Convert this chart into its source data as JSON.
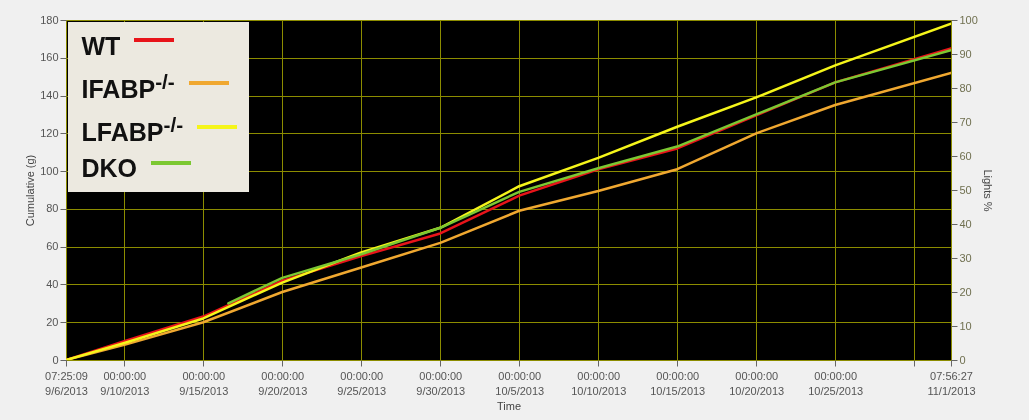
{
  "chart_data": {
    "type": "line",
    "xlabel": "Time",
    "ylabel": "Cumulative (g)",
    "y2label": "Lights %",
    "x": [
      "2013-09-06T07:25:09",
      "2013-09-10T00:00",
      "2013-09-15T00:00",
      "2013-09-20T00:00",
      "2013-09-25T00:00",
      "2013-09-30T00:00",
      "2013-10-05T00:00",
      "2013-10-10T00:00",
      "2013-10-15T00:00",
      "2013-10-20T00:00",
      "2013-10-25T00:00",
      "2013-11-01T07:56:27"
    ],
    "series": [
      {
        "name": "WT",
        "color": "#e8141a",
        "values": [
          0,
          10,
          23,
          42,
          55,
          67,
          87,
          101,
          112,
          129.5,
          147,
          165
        ]
      },
      {
        "name": "IFABP$^{-/-}$",
        "color": "#f0a830",
        "values": [
          0,
          8,
          20,
          36,
          49,
          62,
          79,
          89.5,
          101,
          120,
          135,
          152
        ]
      },
      {
        "name": "LFABP$^{-/-}$",
        "color": "#f5f51a",
        "values": [
          0,
          9,
          22,
          41,
          57,
          70,
          92,
          107,
          123.5,
          139,
          156,
          178
        ]
      },
      {
        "name": "DKO",
        "color": "#7cc832",
        "x": [
          "2013-09-16T14:00",
          "2013-09-20T00:00",
          "2013-09-25T00:00",
          "2013-09-30T00:00",
          "2013-10-05T00:00",
          "2013-10-10T00:00",
          "2013-10-15T00:00",
          "2013-10-20T00:00",
          "2013-10-25T00:00",
          "2013-11-01T07:56:27"
        ],
        "values": [
          30,
          43.5,
          56,
          70,
          89,
          101.5,
          113,
          130,
          147,
          164
        ]
      }
    ],
    "xlim": [
      "2013-09-06T07:25:09",
      "2013-11-01T07:56:27"
    ],
    "xticks": [
      {
        "value": "2013-09-06T07:25:09",
        "label": "07:25:09\n9/6/2013"
      },
      {
        "value": "2013-09-10T00:00",
        "label": "00:00:00\n9/10/2013"
      },
      {
        "value": "2013-09-15T00:00",
        "label": "00:00:00\n9/15/2013"
      },
      {
        "value": "2013-09-20T00:00",
        "label": "00:00:00\n9/20/2013"
      },
      {
        "value": "2013-09-25T00:00",
        "label": "00:00:00\n9/25/2013"
      },
      {
        "value": "2013-09-30T00:00",
        "label": "00:00:00\n9/30/2013"
      },
      {
        "value": "2013-10-05T00:00",
        "label": "00:00:00\n10/5/2013"
      },
      {
        "value": "2013-10-10T00:00",
        "label": "00:00:00\n10/10/2013"
      },
      {
        "value": "2013-10-15T00:00",
        "label": "00:00:00\n10/15/2013"
      },
      {
        "value": "2013-10-20T00:00",
        "label": "00:00:00\n10/20/2013"
      },
      {
        "value": "2013-10-25T00:00",
        "label": "00:00:00\n10/25/2013"
      },
      {
        "value": "2013-10-30T00:00",
        "label": null
      },
      {
        "value": "2013-11-01T07:56:27",
        "label": "07:56:27\n11/1/2013"
      }
    ],
    "ylim": [
      0,
      180
    ],
    "yticks": [
      0,
      20,
      40,
      60,
      80,
      100,
      120,
      140,
      160,
      180
    ],
    "y2lim": [
      0,
      100
    ],
    "y2ticks": [
      0,
      10,
      20,
      30,
      40,
      50,
      60,
      70,
      80,
      90,
      100
    ],
    "grid": true,
    "legend": "top left",
    "line_style": "solid"
  }
}
